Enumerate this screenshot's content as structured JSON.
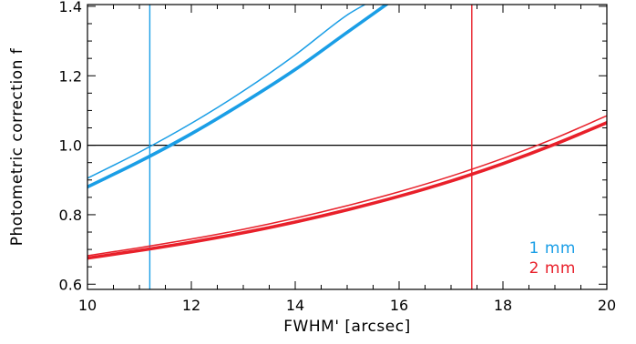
{
  "chart_data": {
    "type": "line",
    "xlabel": "FWHM' [arcsec]",
    "ylabel": "Photometric correction f",
    "xlim": [
      10,
      20
    ],
    "ylim": [
      0.585,
      1.405
    ],
    "xticks": [
      10,
      12,
      14,
      16,
      18,
      20
    ],
    "xtick_labels": [
      "10",
      "12",
      "14",
      "16",
      "18",
      "20"
    ],
    "yticks": [
      0.6,
      0.8,
      1.0,
      1.2,
      1.4
    ],
    "ytick_labels": [
      "0.6",
      "0.8",
      "1.0",
      "1.2",
      "1.4"
    ],
    "grid": false,
    "legend_position": "bottom-right",
    "reference_lines": {
      "horizontal": [
        {
          "y": 1.0,
          "color": "#000000"
        }
      ],
      "vertical": [
        {
          "x": 11.2,
          "color": "#1a9ee6"
        },
        {
          "x": 17.4,
          "color": "#e8202a"
        }
      ]
    },
    "series": [
      {
        "name": "1 mm",
        "color": "#1a9ee6",
        "curves": [
          {
            "weight": "thin",
            "x": [
              10,
              11,
              12,
              13,
              14,
              15,
              15.4
            ],
            "y": [
              0.905,
              0.98,
              1.063,
              1.156,
              1.26,
              1.375,
              1.41
            ]
          },
          {
            "weight": "thick",
            "x": [
              10,
              11,
              12,
              13,
              14,
              15,
              15.8
            ],
            "y": [
              0.88,
              0.953,
              1.033,
              1.122,
              1.218,
              1.325,
              1.41
            ]
          }
        ]
      },
      {
        "name": "2 mm",
        "color": "#e8202a",
        "curves": [
          {
            "weight": "thin",
            "x": [
              10,
              11,
              12,
              13,
              14,
              15,
              16,
              17,
              18,
              19,
              20
            ],
            "y": [
              0.682,
              0.705,
              0.73,
              0.758,
              0.79,
              0.826,
              0.866,
              0.911,
              0.962,
              1.02,
              1.085
            ]
          },
          {
            "weight": "thick",
            "x": [
              10,
              11,
              12,
              13,
              14,
              15,
              16,
              17,
              18,
              19,
              20
            ],
            "y": [
              0.675,
              0.697,
              0.721,
              0.748,
              0.779,
              0.814,
              0.853,
              0.897,
              0.947,
              1.003,
              1.065
            ]
          }
        ]
      }
    ]
  }
}
